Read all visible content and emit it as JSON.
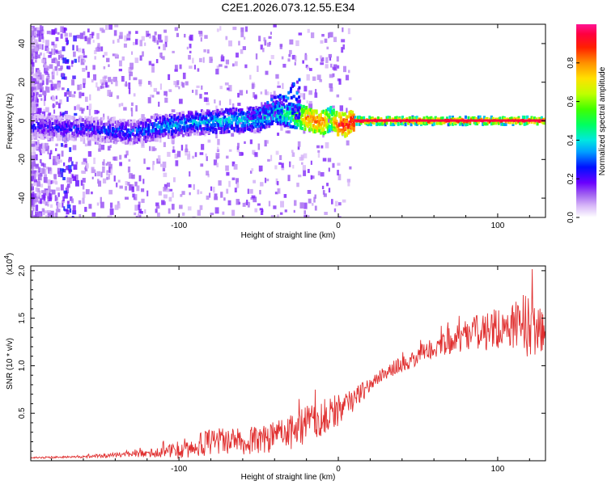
{
  "figure_title": "C2E1.2026.073.12.55.E34",
  "chart_data": [
    {
      "type": "heatmap",
      "title": "C2E1.2026.073.12.55.E34",
      "xlabel": "Height of straight line (km)",
      "ylabel": "Frequency (Hz)",
      "xlim": [
        -193,
        130
      ],
      "ylim": [
        -50,
        50
      ],
      "xticks": [
        -100,
        0,
        100
      ],
      "xtick_labels": [
        "-100",
        "0",
        "100"
      ],
      "yticks": [
        -40,
        -20,
        0,
        20,
        40
      ],
      "ytick_labels": [
        "-40",
        "-20",
        "0",
        "20",
        "40"
      ],
      "colorbar": {
        "label": "Normalized spectral amplitude",
        "range": [
          0,
          1
        ],
        "ticks": [
          0.0,
          0.2,
          0.4,
          0.6,
          0.8
        ],
        "tick_labels": [
          "0.0",
          "0.2",
          "0.4",
          "0.6",
          "0.8"
        ],
        "colors": [
          "#ffffff",
          "#c9a6f5",
          "#8a2be2",
          "#0000ff",
          "#00c8ff",
          "#00ff7f",
          "#7fff00",
          "#ffff00",
          "#ff8c00",
          "#ff0000",
          "#ff1493"
        ]
      },
      "ridge": {
        "description": "dominant frequency track vs height",
        "x": [
          -190,
          -160,
          -130,
          -110,
          -90,
          -70,
          -50,
          -40,
          -30,
          -20,
          -10,
          -5,
          0,
          5,
          10,
          20,
          40,
          60,
          80,
          100,
          120,
          130
        ],
        "freq": [
          -3,
          -4,
          -6,
          -3,
          -1,
          0,
          1,
          4,
          3,
          1,
          -1,
          1,
          -2,
          -2,
          0,
          0,
          0,
          0,
          0,
          0,
          0,
          0
        ],
        "amplitude": [
          0.25,
          0.25,
          0.3,
          0.35,
          0.35,
          0.4,
          0.4,
          0.45,
          0.5,
          0.8,
          0.85,
          0.6,
          0.9,
          0.9,
          0.95,
          0.95,
          0.95,
          0.95,
          0.95,
          0.95,
          0.95,
          0.95
        ]
      }
    },
    {
      "type": "line",
      "xlabel": "Height of straight line (km)",
      "ylabel": "SNR (10 * v/v)",
      "y_multiplier": "(x10",
      "y_multiplier_exp": "4",
      "y_multiplier_close": ")",
      "xlim": [
        -193,
        130
      ],
      "ylim": [
        0,
        2.05
      ],
      "xticks": [
        -100,
        0,
        100
      ],
      "xtick_labels": [
        "-100",
        "0",
        "100"
      ],
      "yticks": [
        0.5,
        1.0,
        1.5,
        2.0
      ],
      "ytick_labels": [
        "0.5",
        "1.0",
        "1.5",
        "2.0"
      ],
      "series": [
        {
          "name": "SNR",
          "color": "#e03030",
          "x": [
            -193,
            -170,
            -150,
            -130,
            -110,
            -100,
            -90,
            -80,
            -70,
            -60,
            -50,
            -40,
            -30,
            -20,
            -10,
            0,
            10,
            20,
            30,
            40,
            50,
            60,
            70,
            80,
            90,
            100,
            110,
            118,
            125,
            130
          ],
          "y": [
            0.03,
            0.04,
            0.05,
            0.07,
            0.09,
            0.12,
            0.16,
            0.2,
            0.22,
            0.2,
            0.22,
            0.25,
            0.3,
            0.38,
            0.45,
            0.5,
            0.65,
            0.8,
            0.92,
            1.02,
            1.1,
            1.2,
            1.26,
            1.32,
            1.35,
            1.38,
            1.42,
            1.45,
            1.35,
            1.3
          ],
          "noise_amplitude": [
            0.01,
            0.01,
            0.02,
            0.03,
            0.06,
            0.1,
            0.12,
            0.14,
            0.15,
            0.14,
            0.15,
            0.16,
            0.18,
            0.2,
            0.2,
            0.15,
            0.12,
            0.08,
            0.08,
            0.09,
            0.1,
            0.12,
            0.14,
            0.16,
            0.2,
            0.22,
            0.25,
            0.35,
            0.3,
            0.3
          ]
        }
      ]
    }
  ]
}
